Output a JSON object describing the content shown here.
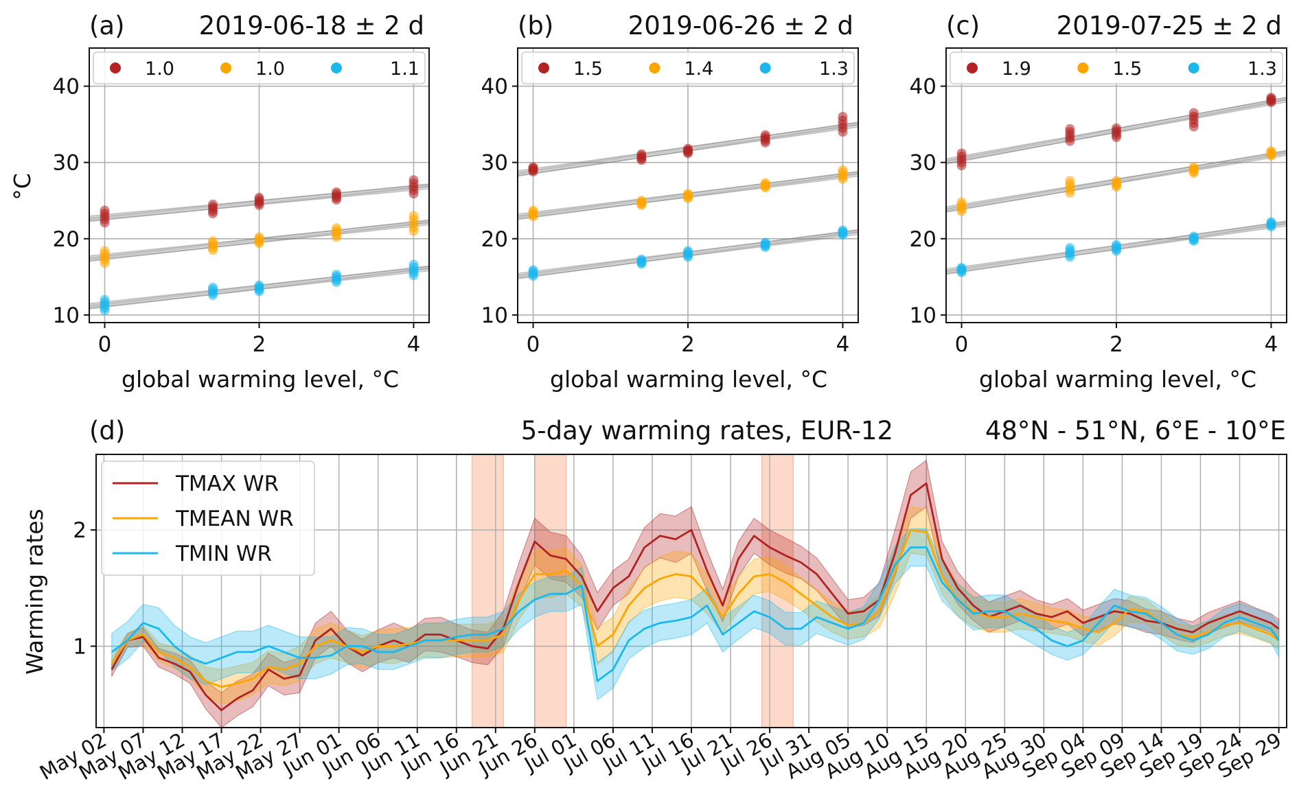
{
  "colors": {
    "tmax": "#b22222",
    "tmean": "#ffa500",
    "tmin": "#1ab8ee",
    "highlight": "#f9a07a",
    "fit_line": "#7f7f7f",
    "grid": "#b0b0b0"
  },
  "chart_data": [
    {
      "type": "scatter",
      "panel_label": "(a)",
      "title": "2019-06-18 ± 2 d",
      "xlabel": "global warming level, °C",
      "ylabel": "°C",
      "xlim": [
        -0.2,
        4.2
      ],
      "ylim": [
        9,
        45
      ],
      "x_ticks": [
        0,
        2,
        4
      ],
      "y_ticks": [
        10,
        20,
        30,
        40
      ],
      "grid": true,
      "legend_position": "top",
      "x": [
        0,
        1.4,
        2,
        3,
        4
      ],
      "series": [
        {
          "name": "1.0",
          "key": "tmax",
          "values": [
            22.9,
            23.9,
            24.9,
            25.6,
            26.8
          ],
          "spread": [
            0.8,
            0.6,
            0.5,
            0.5,
            0.9
          ]
        },
        {
          "name": "1.0",
          "key": "tmean",
          "values": [
            17.6,
            19.1,
            19.8,
            20.8,
            22.0
          ],
          "spread": [
            0.8,
            0.6,
            0.4,
            0.6,
            1.0
          ]
        },
        {
          "name": "1.1",
          "key": "tmin",
          "values": [
            11.3,
            13.1,
            13.5,
            14.8,
            15.9
          ],
          "spread": [
            0.7,
            0.5,
            0.4,
            0.5,
            0.7
          ]
        }
      ]
    },
    {
      "type": "scatter",
      "panel_label": "(b)",
      "title": "2019-06-26 ± 2 d",
      "xlabel": "global warming level, °C",
      "xlim": [
        -0.2,
        4.2
      ],
      "ylim": [
        9,
        45
      ],
      "x_ticks": [
        0,
        2,
        4
      ],
      "y_ticks": [
        10,
        20,
        30,
        40
      ],
      "grid": true,
      "legend_position": "top",
      "x": [
        0,
        1.4,
        2,
        3,
        4
      ],
      "series": [
        {
          "name": "1.5",
          "key": "tmax",
          "values": [
            29.1,
            30.7,
            31.5,
            33.1,
            35.0
          ],
          "spread": [
            0.3,
            0.4,
            0.3,
            0.5,
            1.0
          ]
        },
        {
          "name": "1.4",
          "key": "tmean",
          "values": [
            23.3,
            24.7,
            25.6,
            27.0,
            28.4
          ],
          "spread": [
            0.4,
            0.3,
            0.3,
            0.3,
            0.6
          ]
        },
        {
          "name": "1.3",
          "key": "tmin",
          "values": [
            15.5,
            17.0,
            18.0,
            19.2,
            20.8
          ],
          "spread": [
            0.4,
            0.3,
            0.4,
            0.3,
            0.3
          ]
        }
      ]
    },
    {
      "type": "scatter",
      "panel_label": "(c)",
      "title": "2019-07-25 ± 2 d",
      "xlabel": "global warming level, °C",
      "xlim": [
        -0.2,
        4.2
      ],
      "ylim": [
        9,
        45
      ],
      "x_ticks": [
        0,
        2,
        4
      ],
      "y_ticks": [
        10,
        20,
        30,
        40
      ],
      "grid": true,
      "legend_position": "top",
      "x": [
        0,
        1.4,
        2,
        3,
        4
      ],
      "series": [
        {
          "name": "1.9",
          "key": "tmax",
          "values": [
            30.4,
            33.6,
            33.9,
            35.6,
            38.2
          ],
          "spread": [
            0.8,
            0.8,
            0.6,
            0.9,
            0.3
          ]
        },
        {
          "name": "1.5",
          "key": "tmean",
          "values": [
            24.2,
            26.8,
            27.2,
            29.0,
            31.2
          ],
          "spread": [
            0.6,
            0.8,
            0.4,
            0.4,
            0.3
          ]
        },
        {
          "name": "1.3",
          "key": "tmin",
          "values": [
            15.9,
            18.2,
            18.8,
            20.0,
            21.9
          ],
          "spread": [
            0.3,
            0.6,
            0.4,
            0.3,
            0.3
          ]
        }
      ]
    },
    {
      "type": "line",
      "panel_label": "(d)",
      "title": "5-day warming rates, EUR-12",
      "subtitle": "48°N - 51°N, 6°E - 10°E",
      "ylabel": "Warming rates",
      "ylim": [
        0.3,
        2.65
      ],
      "y_ticks": [
        1,
        2
      ],
      "grid": true,
      "legend_position": "top-left",
      "x_tick_labels": [
        "May 02",
        "May 07",
        "May 12",
        "May 17",
        "May 22",
        "May 27",
        "Jun 01",
        "Jun 06",
        "Jun 11",
        "Jun 16",
        "Jun 21",
        "Jun 26",
        "Jul 01",
        "Jul 06",
        "Jul 11",
        "Jul 16",
        "Jul 21",
        "Jul 26",
        "Jul 31",
        "Aug 05",
        "Aug 10",
        "Aug 15",
        "Aug 20",
        "Aug 25",
        "Aug 30",
        "Sep 04",
        "Sep 09",
        "Sep 14",
        "Sep 19",
        "Sep 24",
        "Sep 29"
      ],
      "x_note": "day 0 = May 02",
      "x": [
        1,
        3,
        5,
        7,
        9,
        11,
        13,
        15,
        17,
        19,
        21,
        23,
        25,
        27,
        29,
        31,
        33,
        35,
        37,
        39,
        41,
        43,
        45,
        47,
        49,
        51,
        53,
        55,
        57,
        59,
        61,
        63,
        65,
        67,
        69,
        71,
        73,
        75,
        77,
        79,
        81,
        83,
        85,
        87,
        89,
        91,
        93,
        95,
        97,
        99,
        101,
        103,
        105,
        107,
        109,
        111,
        113,
        115,
        117,
        119,
        121,
        123,
        125,
        127,
        129,
        131,
        133,
        135,
        137,
        139,
        141,
        143,
        145,
        147,
        149,
        150
      ],
      "highlight_periods": [
        [
          47,
          51
        ],
        [
          55,
          59
        ],
        [
          84,
          88
        ]
      ],
      "series": [
        {
          "name": "TMAX WR",
          "key": "tmax",
          "values": [
            0.8,
            1.05,
            1.08,
            0.9,
            0.85,
            0.78,
            0.58,
            0.45,
            0.55,
            0.62,
            0.8,
            0.72,
            0.75,
            1.05,
            1.15,
            1.0,
            0.92,
            1.0,
            1.05,
            1.0,
            1.1,
            1.1,
            1.05,
            1.0,
            0.98,
            1.15,
            1.55,
            1.9,
            1.78,
            1.75,
            1.6,
            1.3,
            1.5,
            1.6,
            1.85,
            1.95,
            1.92,
            2.0,
            1.65,
            1.35,
            1.75,
            1.95,
            1.85,
            1.78,
            1.72,
            1.62,
            1.45,
            1.28,
            1.3,
            1.4,
            1.8,
            2.3,
            2.4,
            1.75,
            1.5,
            1.35,
            1.25,
            1.3,
            1.35,
            1.28,
            1.25,
            1.3,
            1.2,
            1.25,
            1.3,
            1.28,
            1.22,
            1.2,
            1.15,
            1.12,
            1.2,
            1.25,
            1.3,
            1.25,
            1.2,
            1.15
          ],
          "lower": [
            0.74,
            0.99,
            1.0,
            0.82,
            0.76,
            0.68,
            0.46,
            0.3,
            0.4,
            0.48,
            0.66,
            0.58,
            0.6,
            0.9,
            1.0,
            0.86,
            0.78,
            0.86,
            0.9,
            0.86,
            0.96,
            0.95,
            0.91,
            0.86,
            0.84,
            1.0,
            1.38,
            1.7,
            1.58,
            1.55,
            1.42,
            1.14,
            1.35,
            1.45,
            1.68,
            1.76,
            1.72,
            1.8,
            1.48,
            1.21,
            1.6,
            1.8,
            1.7,
            1.63,
            1.58,
            1.48,
            1.32,
            1.16,
            1.18,
            1.26,
            1.6,
            2.1,
            2.2,
            1.6,
            1.36,
            1.22,
            1.12,
            1.17,
            1.22,
            1.16,
            1.14,
            1.19,
            1.09,
            1.14,
            1.19,
            1.17,
            1.12,
            1.1,
            1.06,
            1.03,
            1.11,
            1.16,
            1.21,
            1.17,
            1.12,
            1.07
          ],
          "upper": [
            0.86,
            1.11,
            1.16,
            0.98,
            0.94,
            0.88,
            0.7,
            0.6,
            0.7,
            0.76,
            0.94,
            0.86,
            0.9,
            1.2,
            1.3,
            1.14,
            1.06,
            1.14,
            1.2,
            1.14,
            1.24,
            1.25,
            1.19,
            1.14,
            1.12,
            1.3,
            1.72,
            2.1,
            1.98,
            1.95,
            1.78,
            1.46,
            1.65,
            1.75,
            2.02,
            2.14,
            2.12,
            2.2,
            1.82,
            1.49,
            1.9,
            2.1,
            2.0,
            1.93,
            1.86,
            1.76,
            1.58,
            1.4,
            1.42,
            1.54,
            2.0,
            2.5,
            2.6,
            1.9,
            1.64,
            1.48,
            1.38,
            1.43,
            1.48,
            1.4,
            1.36,
            1.41,
            1.31,
            1.36,
            1.41,
            1.39,
            1.32,
            1.3,
            1.24,
            1.21,
            1.29,
            1.34,
            1.39,
            1.33,
            1.28,
            1.23
          ]
        },
        {
          "name": "TMEAN WR",
          "key": "tmean",
          "values": [
            0.85,
            1.05,
            1.1,
            0.95,
            0.9,
            0.82,
            0.7,
            0.65,
            0.68,
            0.72,
            0.82,
            0.8,
            0.85,
            1.0,
            1.05,
            1.0,
            0.95,
            1.0,
            1.0,
            1.02,
            1.05,
            1.05,
            1.05,
            1.05,
            1.05,
            1.1,
            1.4,
            1.62,
            1.62,
            1.65,
            1.52,
            1.0,
            1.1,
            1.35,
            1.5,
            1.58,
            1.62,
            1.6,
            1.45,
            1.25,
            1.45,
            1.6,
            1.62,
            1.55,
            1.45,
            1.35,
            1.25,
            1.18,
            1.2,
            1.3,
            1.65,
            2.0,
            1.98,
            1.6,
            1.4,
            1.3,
            1.25,
            1.25,
            1.28,
            1.25,
            1.22,
            1.2,
            1.15,
            1.12,
            1.2,
            1.32,
            1.3,
            1.2,
            1.1,
            1.08,
            1.12,
            1.18,
            1.2,
            1.15,
            1.1,
            1.05
          ],
          "lower": [
            0.79,
            0.99,
            1.02,
            0.87,
            0.81,
            0.72,
            0.58,
            0.5,
            0.53,
            0.58,
            0.68,
            0.66,
            0.7,
            0.85,
            0.9,
            0.86,
            0.81,
            0.86,
            0.85,
            0.88,
            0.91,
            0.9,
            0.91,
            0.91,
            0.91,
            0.95,
            1.23,
            1.42,
            1.42,
            1.45,
            1.34,
            0.84,
            0.95,
            1.2,
            1.33,
            1.39,
            1.42,
            1.4,
            1.28,
            1.11,
            1.3,
            1.45,
            1.47,
            1.4,
            1.31,
            1.21,
            1.12,
            1.06,
            1.08,
            1.16,
            1.45,
            1.8,
            1.78,
            1.45,
            1.26,
            1.17,
            1.12,
            1.12,
            1.15,
            1.13,
            1.11,
            1.09,
            1.04,
            1.01,
            1.09,
            1.21,
            1.2,
            1.1,
            1.01,
            0.99,
            1.03,
            1.09,
            1.11,
            1.07,
            1.02,
            0.97
          ],
          "upper": [
            0.91,
            1.11,
            1.18,
            1.03,
            0.99,
            0.92,
            0.82,
            0.8,
            0.83,
            0.86,
            0.96,
            0.94,
            1.0,
            1.15,
            1.2,
            1.14,
            1.09,
            1.14,
            1.15,
            1.16,
            1.19,
            1.2,
            1.19,
            1.19,
            1.19,
            1.25,
            1.57,
            1.82,
            1.82,
            1.85,
            1.7,
            1.16,
            1.25,
            1.5,
            1.67,
            1.77,
            1.82,
            1.8,
            1.62,
            1.39,
            1.6,
            1.75,
            1.77,
            1.7,
            1.59,
            1.49,
            1.38,
            1.3,
            1.32,
            1.44,
            1.85,
            2.2,
            2.18,
            1.75,
            1.54,
            1.43,
            1.38,
            1.38,
            1.41,
            1.37,
            1.33,
            1.31,
            1.26,
            1.23,
            1.31,
            1.43,
            1.4,
            1.3,
            1.19,
            1.17,
            1.21,
            1.27,
            1.29,
            1.23,
            1.18,
            1.13
          ]
        },
        {
          "name": "TMIN WR",
          "key": "tmin",
          "values": [
            0.95,
            1.05,
            1.2,
            1.15,
            1.0,
            0.9,
            0.85,
            0.9,
            0.95,
            0.95,
            1.0,
            0.95,
            0.9,
            0.9,
            0.92,
            1.0,
            1.0,
            0.95,
            0.95,
            1.0,
            1.05,
            1.05,
            1.08,
            1.1,
            1.1,
            1.15,
            1.3,
            1.4,
            1.45,
            1.45,
            1.52,
            0.7,
            0.8,
            1.05,
            1.15,
            1.2,
            1.22,
            1.25,
            1.35,
            1.1,
            1.2,
            1.3,
            1.25,
            1.15,
            1.15,
            1.25,
            1.2,
            1.15,
            1.2,
            1.4,
            1.7,
            1.85,
            1.85,
            1.55,
            1.4,
            1.28,
            1.3,
            1.3,
            1.22,
            1.15,
            1.05,
            1.0,
            1.05,
            1.2,
            1.35,
            1.3,
            1.28,
            1.2,
            1.1,
            1.05,
            1.1,
            1.2,
            1.25,
            1.2,
            1.15,
            1.05
          ],
          "lower": [
            0.79,
            0.89,
            1.04,
            0.97,
            0.82,
            0.72,
            0.67,
            0.72,
            0.77,
            0.77,
            0.82,
            0.77,
            0.72,
            0.72,
            0.76,
            0.84,
            0.85,
            0.8,
            0.8,
            0.85,
            0.9,
            0.9,
            0.93,
            0.95,
            0.95,
            1.0,
            1.15,
            1.25,
            1.3,
            1.3,
            1.36,
            0.54,
            0.64,
            0.89,
            0.99,
            1.05,
            1.07,
            1.1,
            1.2,
            0.95,
            1.06,
            1.16,
            1.11,
            1.01,
            1.01,
            1.11,
            1.06,
            1.01,
            1.06,
            1.24,
            1.54,
            1.69,
            1.69,
            1.39,
            1.26,
            1.14,
            1.16,
            1.16,
            1.08,
            1.01,
            0.93,
            0.88,
            0.93,
            1.06,
            1.21,
            1.16,
            1.14,
            1.06,
            0.96,
            0.93,
            0.98,
            1.08,
            1.13,
            1.08,
            1.03,
            0.91
          ],
          "upper": [
            1.11,
            1.21,
            1.36,
            1.33,
            1.18,
            1.08,
            1.03,
            1.08,
            1.13,
            1.13,
            1.18,
            1.13,
            1.08,
            1.08,
            1.08,
            1.16,
            1.15,
            1.1,
            1.1,
            1.15,
            1.2,
            1.2,
            1.23,
            1.25,
            1.25,
            1.3,
            1.45,
            1.55,
            1.6,
            1.6,
            1.68,
            0.86,
            0.96,
            1.21,
            1.31,
            1.35,
            1.37,
            1.4,
            1.5,
            1.25,
            1.34,
            1.44,
            1.39,
            1.29,
            1.29,
            1.39,
            1.34,
            1.29,
            1.34,
            1.56,
            1.86,
            2.01,
            2.01,
            1.71,
            1.54,
            1.42,
            1.44,
            1.44,
            1.36,
            1.29,
            1.17,
            1.12,
            1.17,
            1.34,
            1.49,
            1.44,
            1.42,
            1.34,
            1.24,
            1.17,
            1.22,
            1.32,
            1.37,
            1.32,
            1.27,
            1.19
          ]
        }
      ]
    }
  ]
}
